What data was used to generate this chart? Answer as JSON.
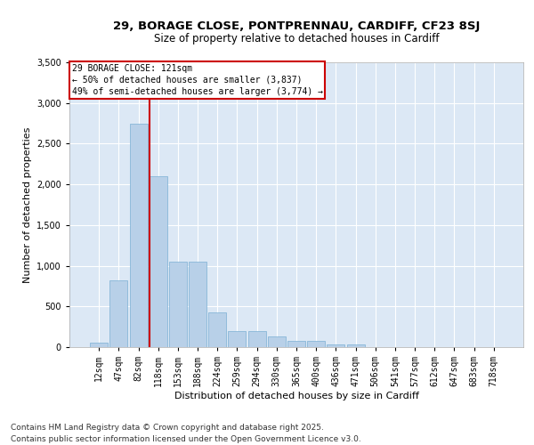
{
  "title_line1": "29, BORAGE CLOSE, PONTPRENNAU, CARDIFF, CF23 8SJ",
  "title_line2": "Size of property relative to detached houses in Cardiff",
  "xlabel": "Distribution of detached houses by size in Cardiff",
  "ylabel": "Number of detached properties",
  "categories": [
    "12sqm",
    "47sqm",
    "82sqm",
    "118sqm",
    "153sqm",
    "188sqm",
    "224sqm",
    "259sqm",
    "294sqm",
    "330sqm",
    "365sqm",
    "400sqm",
    "436sqm",
    "471sqm",
    "506sqm",
    "541sqm",
    "577sqm",
    "612sqm",
    "647sqm",
    "683sqm",
    "718sqm"
  ],
  "values": [
    55,
    820,
    2750,
    2100,
    1050,
    1050,
    430,
    200,
    200,
    130,
    80,
    80,
    30,
    30,
    5,
    0,
    0,
    0,
    0,
    0,
    0
  ],
  "bar_color": "#b8d0e8",
  "bar_edge_color": "#7aafd4",
  "vline_color": "#cc0000",
  "annotation_text": "29 BORAGE CLOSE: 121sqm\n← 50% of detached houses are smaller (3,837)\n49% of semi-detached houses are larger (3,774) →",
  "annotation_box_facecolor": "#ffffff",
  "annotation_box_edgecolor": "#cc0000",
  "ylim": [
    0,
    3500
  ],
  "yticks": [
    0,
    500,
    1000,
    1500,
    2000,
    2500,
    3000,
    3500
  ],
  "background_color": "#dce8f5",
  "grid_color": "#ffffff",
  "footer_line1": "Contains HM Land Registry data © Crown copyright and database right 2025.",
  "footer_line2": "Contains public sector information licensed under the Open Government Licence v3.0.",
  "title_fontsize": 9.5,
  "subtitle_fontsize": 8.5,
  "axis_label_fontsize": 8,
  "tick_fontsize": 7,
  "annotation_fontsize": 7,
  "footer_fontsize": 6.5
}
